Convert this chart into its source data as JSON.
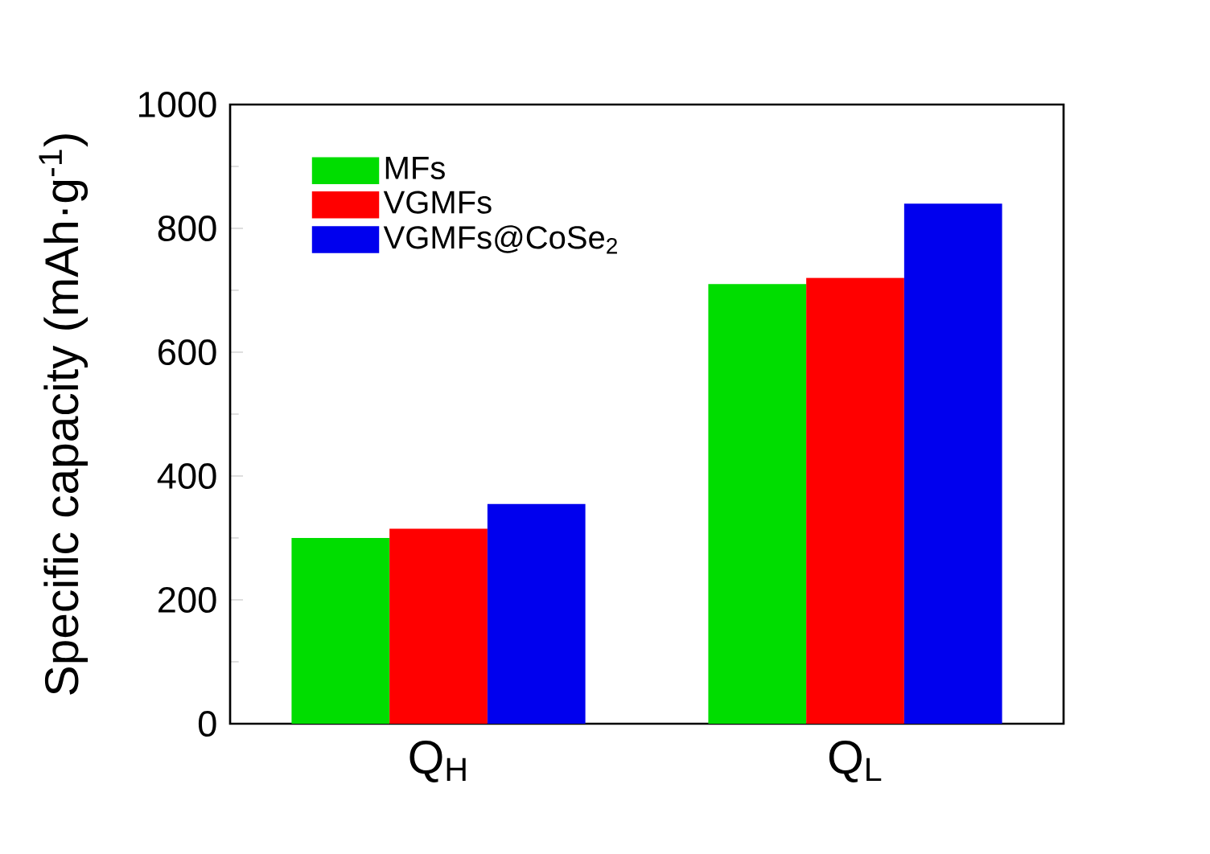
{
  "chart_data": {
    "type": "bar",
    "ylabel": "Specific capacity (mAh·g$^{-1}$)",
    "categories": [
      "Q$_{H}$",
      "Q$_{L}$"
    ],
    "series": [
      {
        "name": "MFs",
        "color": "#00dd00",
        "values": [
          300,
          710
        ]
      },
      {
        "name": "VGMFs",
        "color": "#ff0000",
        "values": [
          315,
          720
        ]
      },
      {
        "name": "VGMFs@CoSe$_{2}$",
        "color": "#0000ee",
        "values": [
          355,
          840
        ]
      }
    ],
    "ylim": [
      0,
      1000
    ],
    "yticks": [
      0,
      200,
      400,
      600,
      800,
      1000
    ],
    "legend": "top left",
    "grid": false
  }
}
